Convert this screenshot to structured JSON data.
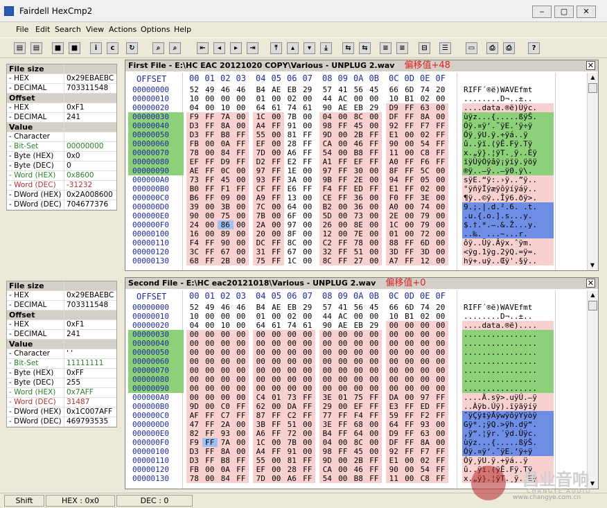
{
  "window": {
    "title": "Fairdell HexCmp2",
    "buttons": [
      "‒",
      "▢",
      "✕"
    ]
  },
  "menu": [
    "File",
    "Edit",
    "Search",
    "View",
    "Actions",
    "Options",
    "Help"
  ],
  "toolbar": {
    "icons": [
      "open-file-icon",
      "open-second-icon",
      "stop-icon",
      "stop2-icon",
      "info-icon",
      "compare-icon",
      "refresh-icon",
      "find-icon",
      "find-next-icon",
      "first-diff-icon",
      "prev-diff-icon",
      "next-diff-icon",
      "last-diff-icon",
      "top-icon",
      "up-icon",
      "down-icon",
      "bottom-icon",
      "sync-icon",
      "sync2-icon",
      "merge-icon",
      "merge2-icon",
      "split-icon",
      "list-icon",
      "doc-icon",
      "print-icon",
      "print2-icon",
      "help-icon"
    ]
  },
  "panel1": {
    "rows": [
      {
        "k": "File size",
        "v": "",
        "hdr": true
      },
      {
        "k": "- HEX",
        "v": "0x29EBAEBC"
      },
      {
        "k": "- DECIMAL",
        "v": "703311548"
      },
      {
        "k": "Offset",
        "v": "",
        "hdr": true
      },
      {
        "k": "- HEX",
        "v": "0xF1"
      },
      {
        "k": "- DECIMAL",
        "v": "241"
      },
      {
        "k": "Value",
        "v": "",
        "hdr": true
      },
      {
        "k": "- Character",
        "v": ""
      },
      {
        "k": "- Bit-Set",
        "v": "00000000",
        "cls": "green"
      },
      {
        "k": "- Byte (HEX)",
        "v": "0x0"
      },
      {
        "k": "- Byte (DEC)",
        "v": "0"
      },
      {
        "k": "- Word (HEX)",
        "v": "0x8600",
        "cls": "green"
      },
      {
        "k": "- Word (DEC)",
        "v": "-31232",
        "cls": "red"
      },
      {
        "k": "- DWord (HEX)",
        "v": "0x2A008600"
      },
      {
        "k": "- DWord (DEC)",
        "v": "704677376"
      }
    ]
  },
  "panel2": {
    "rows": [
      {
        "k": "File size",
        "v": "",
        "hdr": true
      },
      {
        "k": "- HEX",
        "v": "0x29EBAEBC"
      },
      {
        "k": "- DECIMAL",
        "v": "703311548"
      },
      {
        "k": "Offset",
        "v": "",
        "hdr": true
      },
      {
        "k": "- HEX",
        "v": "0xF1"
      },
      {
        "k": "- DECIMAL",
        "v": "241"
      },
      {
        "k": "Value",
        "v": "",
        "hdr": true
      },
      {
        "k": "- Character",
        "v": "' '"
      },
      {
        "k": "- Bit-Set",
        "v": "11111111",
        "cls": "green"
      },
      {
        "k": "- Byte (HEX)",
        "v": "0xFF"
      },
      {
        "k": "- Byte (DEC)",
        "v": "255"
      },
      {
        "k": "- Word (HEX)",
        "v": "0x7AFF",
        "cls": "green"
      },
      {
        "k": "- Word (DEC)",
        "v": "31487",
        "cls": "red"
      },
      {
        "k": "- DWord (HEX)",
        "v": "0x1C007AFF"
      },
      {
        "k": "- DWord (DEC)",
        "v": "469793535"
      }
    ]
  },
  "hex1": {
    "title": "First File - E:\\HC EAC 20121020 COPY\\Various - UNPLUG 2.wav",
    "note": "偏移值+48",
    "offsets": [
      "00000000",
      "00000010",
      "00000020",
      "00000030",
      "00000040",
      "00000050",
      "00000060",
      "00000070",
      "00000080",
      "00000090",
      "000000A0",
      "000000B0",
      "000000C0",
      "000000D0",
      "000000E0",
      "000000F0",
      "00000100",
      "00000110",
      "00000120",
      "00000130"
    ],
    "rows": [
      "52 49 46 46 B4 AE EB 29 57 41 56 45 66 6D 74 20",
      "10 00 00 00 01 00 02 00 44 AC 00 00 10 B1 02 00",
      "04 00 10 00 64 61 74 61 90 AE EB 29 D9 FF 63 00",
      "F9 FF 7A 00 1C 00 7B 00 04 00 8C 00 DF FF 8A 00",
      "D3 FF 8A 00 A4 FF 91 00 98 FF 45 00 92 FF F7 FF",
      "D3 FF B8 FF 55 00 81 FF 9D 00 2B FF E1 00 02 FF",
      "FB 00 0A FF EF 00 28 FF CA 00 46 FF 90 00 54 FF",
      "78 00 84 FF 7D 00 A6 FF 54 00 B8 FF 11 00 C8 FF",
      "EF FF D9 FF D2 FF E2 FF A1 FF EF FF A0 FF F6 FF",
      "AE FF 0C 00 97 FF 1E 00 97 FF 30 00 8F FF 5C 00",
      "73 FF 45 00 93 FF 3A 00 9B FF 2E 00 94 FF 05 00",
      "B0 FF F1 FF CF FF E6 FF F4 FF ED FF E1 FF 02 00",
      "B6 FF 09 00 A9 FF 13 00 CE FF 36 00 F0 FF 3E 00",
      "39 00 3B 00 7C 00 64 00 B2 00 36 00 A0 00 74 00",
      "90 00 75 00 7B 00 6F 00 5D 00 73 00 2E 00 79 00",
      "24 00 86 00 2A 00 97 00 26 00 8E 00 1C 00 79 00",
      "16 00 89 00 20 00 8F 00 12 00 7E 00 01 00 72 00",
      "F4 FF 90 00 DC FF 8C 00 C2 FF 78 00 88 FF 6D 00",
      "3C FF 67 00 31 FF 67 00 32 FF 51 00 3D FF 3D 00",
      "68 FF 2B 00 75 FF 1C 00 8C FF 27 00 A7 FF 12 00"
    ],
    "ascii": [
      "RIFF´®ë)WAVEfmt ",
      "........D¬..±..",
      "....data.®ë)Ùÿc.",
      "ùÿz...{.....ßÿŠ.",
      "Óÿ.¤ÿ‘.˜ÿE.’ÿ÷ÿ",
      "Óÿ¸ÿU.ÿ.+ÿá..ÿ",
      "û..ÿï.(ÿÊ.Fÿ.Tÿ",
      "x.„ÿ}.¦ÿT.¸ÿ..Èÿ",
      "ïÿÙÿÒÿâÿ¡ÿïÿ.ÿöÿ",
      "®ÿ..—ÿ..—ÿ0.ÿ\\.",
      "sÿE.“ÿ:.›ÿ..”ÿ..",
      "°ÿñÿÏÿæÿôÿíÿáÿ..",
      "¶ÿ..©ÿ..Îÿ6.ðÿ>.",
      "9.;.|.d.².6. .t.",
      ".u.{.o.].s...y.",
      "$.†.*.—.&.Ž...y.",
      "..‰. ...~...r.",
      "ôÿ..Üÿ.Âÿx.ˆÿm.",
      "<ÿg.1ÿg.2ÿQ.=ÿ=.",
      "hÿ+.uÿ..Œÿ'.§ÿ.."
    ]
  },
  "hex2": {
    "title": "Second File - E:\\HC eac20121018\\Various - UNPLUG 2.wav",
    "note": "偏移值+0",
    "offsets": [
      "00000000",
      "00000010",
      "00000020",
      "00000030",
      "00000040",
      "00000050",
      "00000060",
      "00000070",
      "00000080",
      "00000090",
      "000000A0",
      "000000B0",
      "000000C0",
      "000000D0",
      "000000E0",
      "000000F0",
      "00000100",
      "00000110",
      "00000120",
      "00000130"
    ],
    "rows": [
      "52 49 46 46 B4 AE EB 29 57 41 56 45 66 6D 74 20",
      "10 00 00 00 01 00 02 00 44 AC 00 00 10 B1 02 00",
      "04 00 10 00 64 61 74 61 90 AE EB 29 00 00 00 00",
      "00 00 00 00 00 00 00 00 00 00 00 00 00 00 00 00",
      "00 00 00 00 00 00 00 00 00 00 00 00 00 00 00 00",
      "00 00 00 00 00 00 00 00 00 00 00 00 00 00 00 00",
      "00 00 00 00 00 00 00 00 00 00 00 00 00 00 00 00",
      "00 00 00 00 00 00 00 00 00 00 00 00 00 00 00 00",
      "00 00 00 00 00 00 00 00 00 00 00 00 00 00 00 00",
      "00 00 00 00 00 00 00 00 00 00 00 00 00 00 00 00",
      "00 00 00 00 C4 01 73 FF 3E 01 75 FF DA 00 97 FF",
      "9D 00 C0 FF 62 00 DA FF 29 00 EF FF E3 FF ED FF",
      "AF FF C7 FF 87 FF C2 FF 77 FF F4 FF 59 FF F2 FF",
      "47 FF 2A 00 3B FF 51 00 3E FF 68 00 64 FF 93 00",
      "82 FF 93 00 A6 FF 72 00 B4 FF 64 00 D9 FF 63 00",
      "F9 FF 7A 00 1C 00 7B 00 04 00 8C 00 DF FF 8A 00",
      "D3 FF 8A 00 A4 FF 91 00 98 FF 45 00 92 FF F7 FF",
      "D3 FF B8 FF 55 00 81 FF 9D 00 2B FF E1 00 02 FF",
      "FB 00 0A FF EF 00 28 FF CA 00 46 FF 90 00 54 FF",
      "78 00 84 FF 7D 00 A6 FF 54 00 B8 FF 11 00 C8 FF"
    ],
    "ascii": [
      "RIFF´®ë)WAVEfmt ",
      "........D¬..±..",
      "....data.®ë)....",
      "................",
      "................",
      "................",
      "................",
      "................",
      "................",
      "................",
      "....Ä.sÿ>.uÿÚ.—ÿ",
      "..Àÿb.Úÿ).ïÿãÿíÿ",
      "¯ÿÇÿ‡ÿÂÿwÿôÿYÿòÿ",
      "Gÿ*.;ÿQ.>ÿh.dÿ“.",
      "‚ÿ“.¦ÿr.´ÿd.Ùÿc.",
      "ùÿz...{.....ßÿŠ.",
      "Óÿ.¤ÿ‘.˜ÿE.’ÿ÷ÿ",
      "Óÿ¸ÿU.ÿ.+ÿá..ÿ",
      "û..ÿï.(ÿÊ.Fÿ.Tÿ",
      "x.„ÿ}.¦ÿT.¸ÿ..Èÿ"
    ]
  },
  "colheaders": {
    "offset": "OFFSET",
    "cols": [
      "00",
      "01",
      "02",
      "03",
      "04",
      "05",
      "06",
      "07",
      "08",
      "09",
      "0A",
      "0B",
      "0C",
      "0D",
      "0E",
      "0F"
    ]
  },
  "status": {
    "shift": "Shift",
    "hex": "HEX : 0x0",
    "dec": "DEC : 0"
  },
  "watermark": {
    "cn": "昌业音响",
    "en": "CHANGYE AUDIO",
    "url": "www.changye.com.cn"
  }
}
